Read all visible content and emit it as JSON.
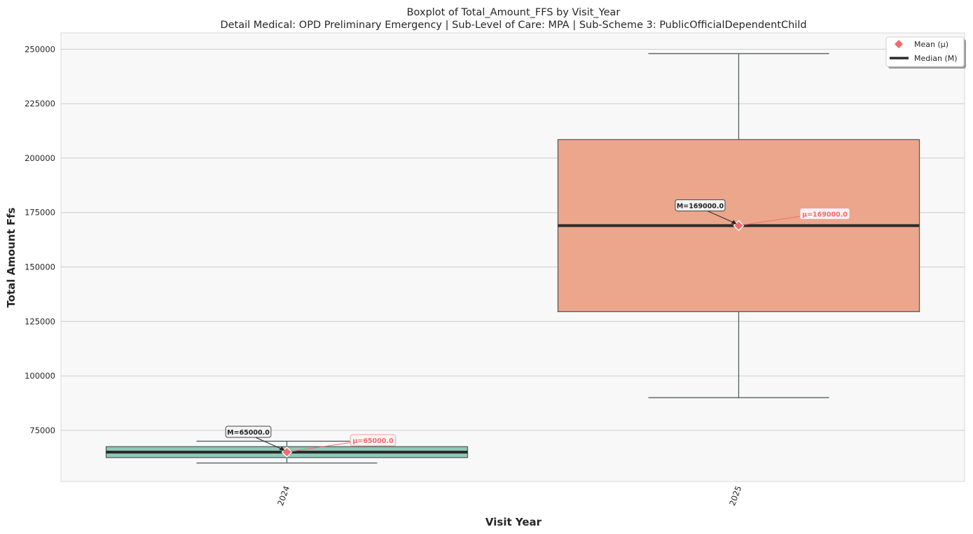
{
  "chart_data": {
    "type": "box",
    "title": "Boxplot of Total_Amount_FFS by Visit_Year",
    "subtitle": "Detail Medical: OPD Preliminary Emergency | Sub-Level of Care: MPA | Sub-Scheme 3: PublicOfficialDependentChild",
    "xlabel": "Visit Year",
    "ylabel": "Total Amount Ffs",
    "categories": [
      "2024",
      "2025"
    ],
    "yticks": [
      75000,
      100000,
      125000,
      150000,
      175000,
      200000,
      225000,
      250000
    ],
    "ytick_labels": [
      "75000",
      "100000",
      "125000",
      "150000",
      "175000",
      "200000",
      "225000",
      "250000"
    ],
    "ylim": [
      51500,
      257500
    ],
    "grid": true,
    "legend_position": "top-right",
    "legend": [
      {
        "label": "Mean (μ)",
        "marker": "diamond",
        "color": "#f26b6b"
      },
      {
        "label": "Median (M)",
        "marker": "line",
        "color": "#2b2b2b"
      }
    ],
    "boxes": [
      {
        "category": "2024",
        "whisker_low": 60000,
        "q1": 62500,
        "median": 65000,
        "q3": 67500,
        "whisker_high": 70000,
        "mean": 65000,
        "color": "#8dc8b6",
        "median_label": "M=65000.0",
        "mean_label": "μ=65000.0"
      },
      {
        "category": "2025",
        "whisker_low": 90000,
        "q1": 129500,
        "median": 169000,
        "q3": 208500,
        "whisker_high": 248000,
        "mean": 169000,
        "color": "#eba68c",
        "median_label": "M=169000.0",
        "mean_label": "μ=169000.0"
      }
    ]
  },
  "colors": {
    "plot_background": "#f8f8f8",
    "grid": "#cccccc",
    "mean_marker": "#f26b6b",
    "median_line": "#2b2b2b",
    "whisker": "#555f5f"
  }
}
